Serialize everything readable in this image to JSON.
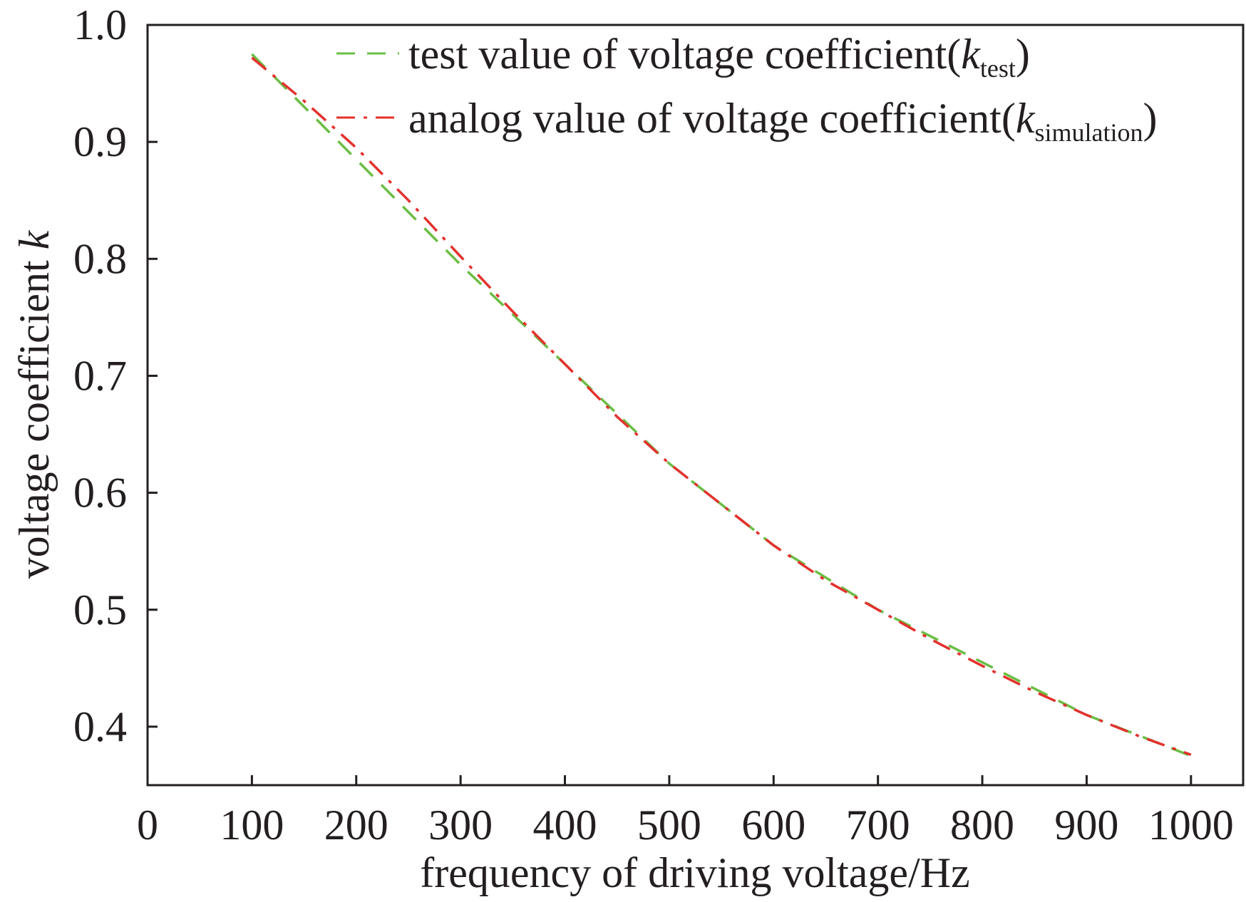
{
  "chart_data": {
    "type": "line",
    "xlabel": "frequency of driving voltage/Hz",
    "ylabel": "voltage coefficient ",
    "ylabel_var": "k",
    "xlim": [
      0,
      1050
    ],
    "ylim": [
      0.35,
      1.0
    ],
    "x_ticks": [
      0,
      100,
      200,
      300,
      400,
      500,
      600,
      700,
      800,
      900,
      1000
    ],
    "x_tick_labels": [
      "0",
      "100",
      "200",
      "300",
      "400",
      "500",
      "600",
      "700",
      "800",
      "900",
      "1000"
    ],
    "y_ticks": [
      0.4,
      0.5,
      0.6,
      0.7,
      0.8,
      0.9,
      1.0
    ],
    "y_tick_labels": [
      "0.4",
      "0.5",
      "0.6",
      "0.7",
      "0.8",
      "0.9",
      "1.0"
    ],
    "grid": false,
    "legend_position": "top-right",
    "series": [
      {
        "name": "test value of voltage coefficient(",
        "name_var": "k",
        "name_sub": "test",
        "name_end": ")",
        "color": "#6bbd45",
        "dash": "dashed",
        "x": [
          100,
          200,
          300,
          400,
          500,
          600,
          700,
          800,
          900,
          1000
        ],
        "y": [
          0.975,
          0.885,
          0.795,
          0.71,
          0.625,
          0.555,
          0.5,
          0.455,
          0.41,
          0.375
        ]
      },
      {
        "name": "analog value of voltage coefficient(",
        "name_var": "k",
        "name_sub": "simulation",
        "name_end": ")",
        "color": "#e3312d",
        "dash": "dashdot",
        "x": [
          100,
          150,
          200,
          250,
          300,
          350,
          400,
          450,
          500,
          550,
          600,
          650,
          700,
          750,
          800,
          850,
          900,
          950,
          1000
        ],
        "y": [
          0.972,
          0.935,
          0.895,
          0.85,
          0.802,
          0.755,
          0.71,
          0.665,
          0.625,
          0.59,
          0.555,
          0.525,
          0.5,
          0.475,
          0.452,
          0.43,
          0.41,
          0.392,
          0.376
        ]
      }
    ]
  }
}
